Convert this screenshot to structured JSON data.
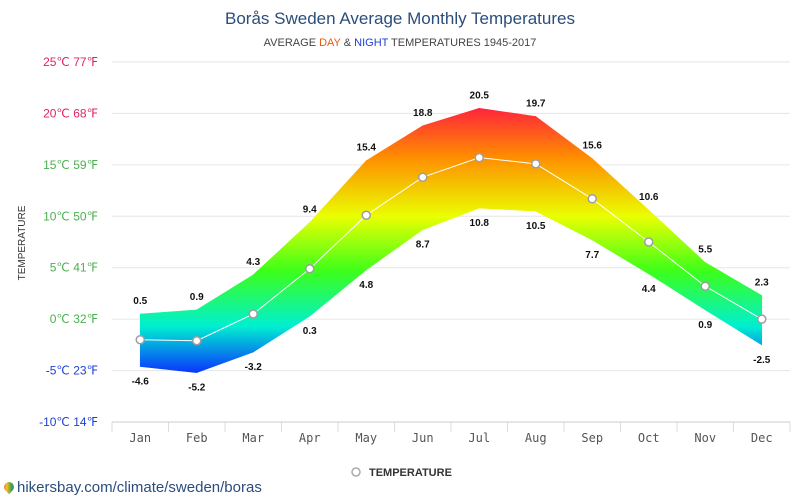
{
  "source_text": "hikersbay.com/climate/sweden/boras",
  "legend_label": "TEMPERATURE",
  "colors": {
    "title": "#2a4e7a",
    "day": "#e8590c",
    "night": "#1d3fd6",
    "ytick_hot": "#e0245e",
    "ytick_warm": "#4caf50",
    "ytick_cold": "#1d3fd6"
  },
  "chart_data": {
    "type": "area",
    "title": "Borås Sweden Average Monthly Temperatures",
    "subtitle": {
      "prefix": "AVERAGE ",
      "day": "DAY",
      "amp": " & ",
      "night": "NIGHT",
      "suffix": " TEMPERATURES 1945-2017"
    },
    "ylabel": "TEMPERATURE",
    "xlabel": "",
    "ylim": [
      -10,
      25
    ],
    "yticks": [
      {
        "value": 25,
        "label": "25℃ 77℉"
      },
      {
        "value": 20,
        "label": "20℃ 68℉"
      },
      {
        "value": 15,
        "label": "15℃ 59℉"
      },
      {
        "value": 10,
        "label": "10℃ 50℉"
      },
      {
        "value": 5,
        "label": "5℃ 41℉"
      },
      {
        "value": 0,
        "label": "0℃ 32℉"
      },
      {
        "value": -5,
        "label": "-5℃ 23℉"
      },
      {
        "value": -10,
        "label": "-10℃ 14℉"
      }
    ],
    "categories": [
      "Jan",
      "Feb",
      "Mar",
      "Apr",
      "May",
      "Jun",
      "Jul",
      "Aug",
      "Sep",
      "Oct",
      "Nov",
      "Dec"
    ],
    "day": [
      0.5,
      0.9,
      4.3,
      9.4,
      15.4,
      18.8,
      20.5,
      19.7,
      15.6,
      10.6,
      5.5,
      2.3
    ],
    "night": [
      -4.6,
      -5.2,
      -3.2,
      0.3,
      4.8,
      8.7,
      10.8,
      10.5,
      7.7,
      4.4,
      0.9,
      -2.5
    ],
    "series": [
      {
        "name": "TEMPERATURE",
        "values": [
          -2.0,
          -2.1,
          0.5,
          4.9,
          10.1,
          13.8,
          15.7,
          15.1,
          11.7,
          7.5,
          3.2,
          0.0
        ]
      }
    ],
    "grid": true,
    "legend_position": "bottom-center"
  }
}
